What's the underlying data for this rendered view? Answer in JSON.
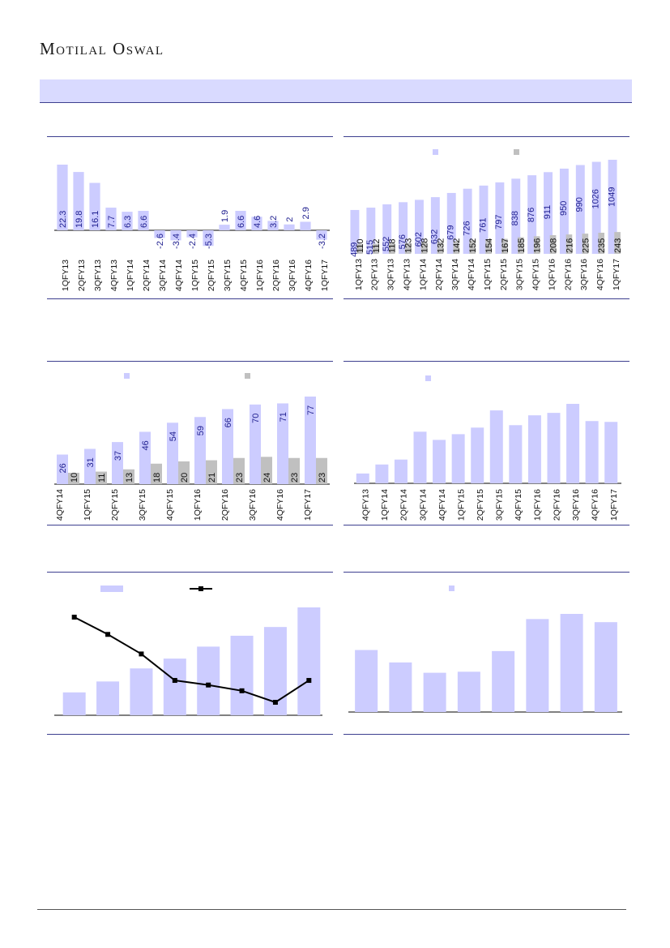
{
  "header": {
    "brand": "Motilal Oswal"
  },
  "colors": {
    "primary": "#ccccff",
    "secondary": "#c0c0c0",
    "value_label": "#1f1f8f",
    "line": "#000000",
    "rule": "#3d3f8f"
  },
  "chart_data": [
    {
      "id": "c1",
      "type": "bar",
      "categories": [
        "1QFY13",
        "2QFY13",
        "3QFY13",
        "4QFY13",
        "1QFY14",
        "2QFY14",
        "3QFY14",
        "4QFY14",
        "1QFY15",
        "2QFY15",
        "3QFY15",
        "4QFY15",
        "1QFY16",
        "2QFY16",
        "3QFY16",
        "4QFY16",
        "1QFY17"
      ],
      "series": [
        {
          "values": [
            22.3,
            19.8,
            16.1,
            7.7,
            6.3,
            6.6,
            -2.6,
            -3.4,
            -2.4,
            -5.3,
            1.9,
            6.6,
            4.6,
            3.2,
            2.0,
            2.9,
            -3.2
          ]
        }
      ]
    },
    {
      "id": "c2",
      "type": "bar",
      "categories": [
        "1QFY13",
        "2QFY13",
        "3QFY13",
        "4QFY13",
        "1QFY14",
        "2QFY14",
        "3QFY14",
        "4QFY14",
        "1QFY15",
        "2QFY15",
        "3QFY15",
        "4QFY15",
        "1QFY16",
        "2QFY16",
        "3QFY16",
        "4QFY16",
        "1QFY17"
      ],
      "series": [
        {
          "values": [
            489,
            515,
            552,
            576,
            602,
            632,
            679,
            726,
            761,
            797,
            838,
            876,
            911,
            950,
            990,
            1026,
            1049
          ]
        },
        {
          "values": [
            110,
            112,
            118,
            123,
            128,
            132,
            142,
            152,
            154,
            167,
            185,
            196,
            208,
            216,
            225,
            235,
            243
          ]
        }
      ]
    },
    {
      "id": "c3",
      "type": "bar",
      "categories": [
        "4QFY14",
        "1QFY15",
        "2QFY15",
        "3QFY15",
        "4QFY15",
        "1QFY16",
        "2QFY16",
        "3QFY16",
        "4QFY16",
        "1QFY17"
      ],
      "series": [
        {
          "values": [
            26,
            31,
            37,
            46,
            54,
            59,
            66,
            70,
            71,
            77
          ]
        },
        {
          "values": [
            10,
            11,
            13,
            18,
            20,
            21,
            23,
            24,
            23,
            23
          ]
        }
      ]
    },
    {
      "id": "c4",
      "type": "bar",
      "categories": [
        "4QFY13",
        "1QFY14",
        "2QFY14",
        "3QFY14",
        "4QFY14",
        "1QFY15",
        "2QFY15",
        "3QFY15",
        "4QFY15",
        "1QFY16",
        "2QFY16",
        "3QFY16",
        "4QFY16",
        "1QFY17"
      ],
      "series": [
        {
          "values": [
            12,
            23,
            29,
            63,
            53,
            60,
            68,
            89,
            71,
            83,
            86,
            97,
            76,
            75
          ]
        }
      ]
    },
    {
      "id": "c5",
      "type": "bar",
      "categories": [
        "",
        "",
        "",
        "",
        "",
        "",
        "",
        ""
      ],
      "series": [
        {
          "type": "bar",
          "values": [
            21,
            31,
            43,
            52,
            63,
            73,
            81,
            99
          ]
        },
        {
          "type": "line",
          "values": [
            90,
            75,
            58,
            35,
            31,
            26,
            16,
            35
          ]
        }
      ]
    },
    {
      "id": "c6",
      "type": "bar",
      "categories": [
        "",
        "",
        "",
        "",
        "",
        "",
        "",
        ""
      ],
      "series": [
        {
          "values": [
            60,
            48,
            38,
            39,
            59,
            90,
            95,
            87
          ]
        }
      ]
    }
  ]
}
